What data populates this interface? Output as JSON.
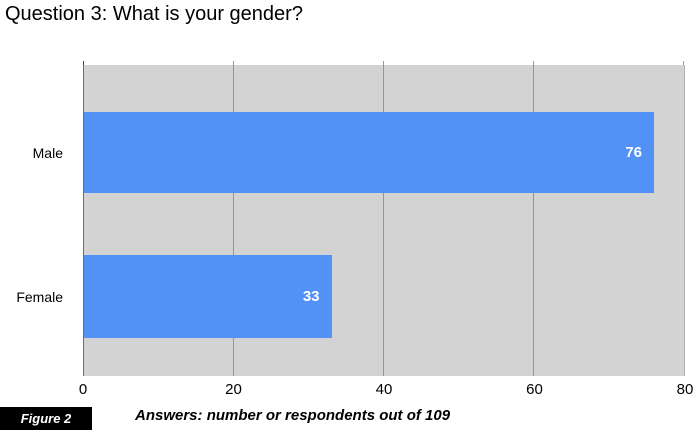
{
  "title": "Question 3: What is your gender?",
  "chart_data": {
    "type": "bar",
    "orientation": "horizontal",
    "title": "Question 3: What is your gender?",
    "categories": [
      "Male",
      "Female"
    ],
    "values": [
      76,
      33
    ],
    "value_labels": [
      "76",
      "33"
    ],
    "xlabel": "",
    "ylabel": "",
    "xlim": [
      0,
      80
    ],
    "x_ticks": [
      0,
      20,
      40,
      60,
      80
    ],
    "grid": true,
    "legend": "none",
    "colors": {
      "bar": "#5292f7",
      "value_label": "#ffffff",
      "plot_background": "#d3d3d3",
      "gridline": "#969696",
      "axis_line": "#6f6f6f",
      "figure_box_background": "#000000",
      "figure_box_text": "#ffffff"
    }
  },
  "footer": {
    "figure_label": "Figure 2",
    "caption": "Answers: number or respondents out of 109"
  }
}
